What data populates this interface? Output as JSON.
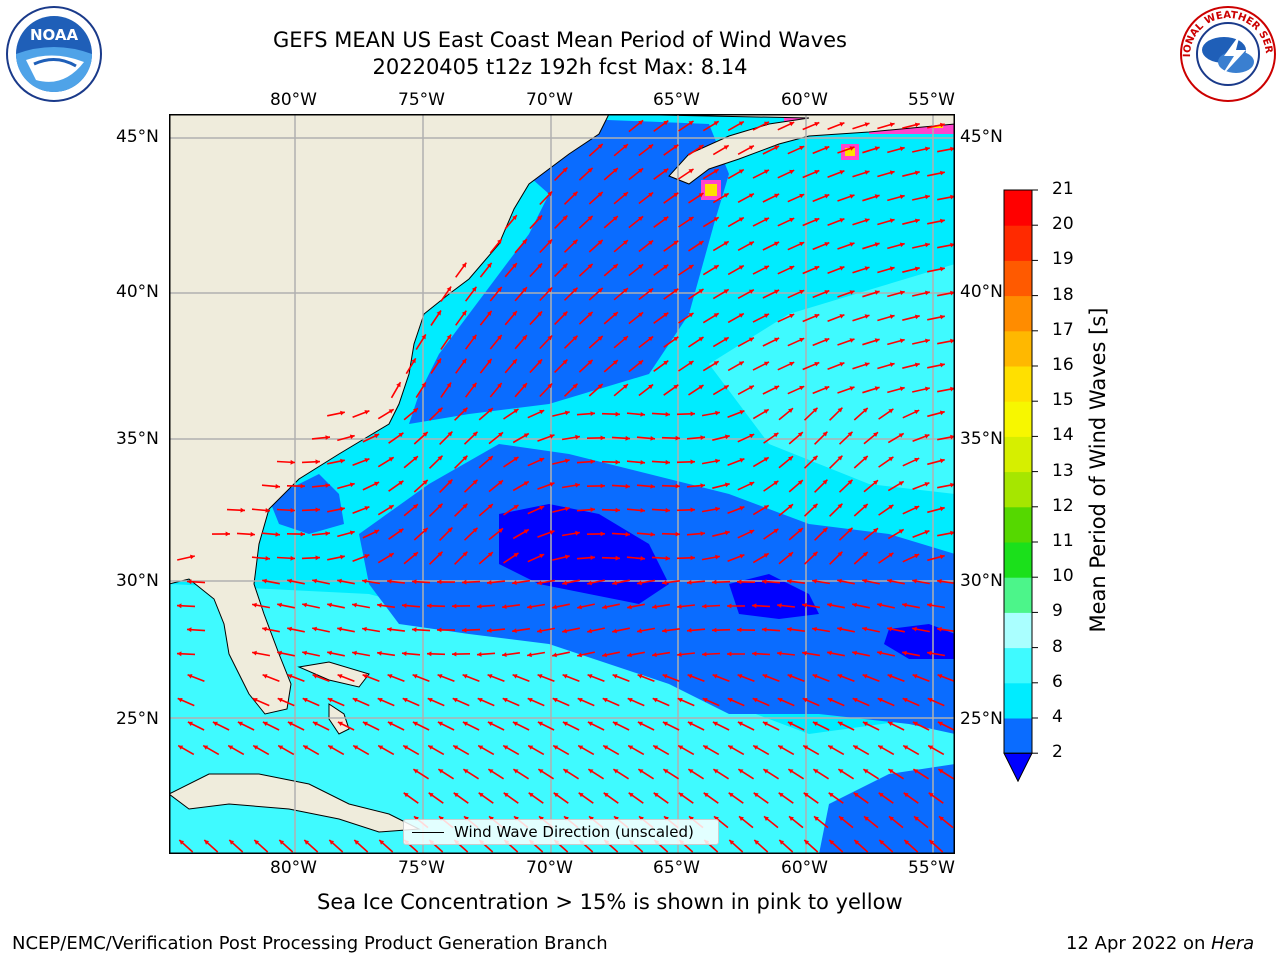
{
  "title": {
    "line1": "GEFS MEAN US East Coast Mean Period of Wind Waves",
    "line2": "20220405 t12z 192h fcst   Max: 8.14"
  },
  "logos": {
    "left": {
      "icon": "noaa-logo",
      "text": "NOAA"
    },
    "right": {
      "icon": "nws-logo",
      "text": "NATIONAL WEATHER SERVICE"
    }
  },
  "axes": {
    "lon_labels": [
      "80°W",
      "75°W",
      "70°W",
      "65°W",
      "60°W",
      "55°W"
    ],
    "lat_labels": [
      "45°N",
      "40°N",
      "35°N",
      "30°N",
      "25°N"
    ],
    "lon_range": [
      -85,
      -54.3
    ],
    "lat_range": [
      20,
      46
    ],
    "grid": true
  },
  "legend": {
    "label": "Wind Wave Direction (unscaled)"
  },
  "colorbar": {
    "label": "Mean Period of Wind Waves [s]",
    "ticks": [
      "2",
      "4",
      "6",
      "8",
      "9",
      "10",
      "11",
      "12",
      "13",
      "14",
      "15",
      "16",
      "17",
      "18",
      "19",
      "20",
      "21"
    ],
    "colors": [
      "#0a6cff",
      "#00ecff",
      "#3ffaff",
      "#aaffff",
      "#4cf58a",
      "#1be01b",
      "#55d800",
      "#a6e600",
      "#d6ef00",
      "#f7f700",
      "#ffe000",
      "#ffb800",
      "#ff8c00",
      "#ff5a00",
      "#ff2a00",
      "#ff0000"
    ],
    "under_color": "#0000ff"
  },
  "note": "Sea Ice Concentration > 15% is shown in pink to yellow",
  "footer": {
    "left": "NCEP/EMC/Verification Post Processing Product Generation Branch",
    "right_date": "12 Apr 2022 on ",
    "right_host": "Hera"
  },
  "colors": {
    "land": "#efecdc",
    "period_lt4": "#0a6cff",
    "period_4_6": "#00ecff",
    "period_6_8": "#3ffaff",
    "period_lt2": "#0000ff",
    "arrow": "#ff0000",
    "ice_pink": "#ff44cc",
    "ice_yellow": "#ffe000"
  }
}
